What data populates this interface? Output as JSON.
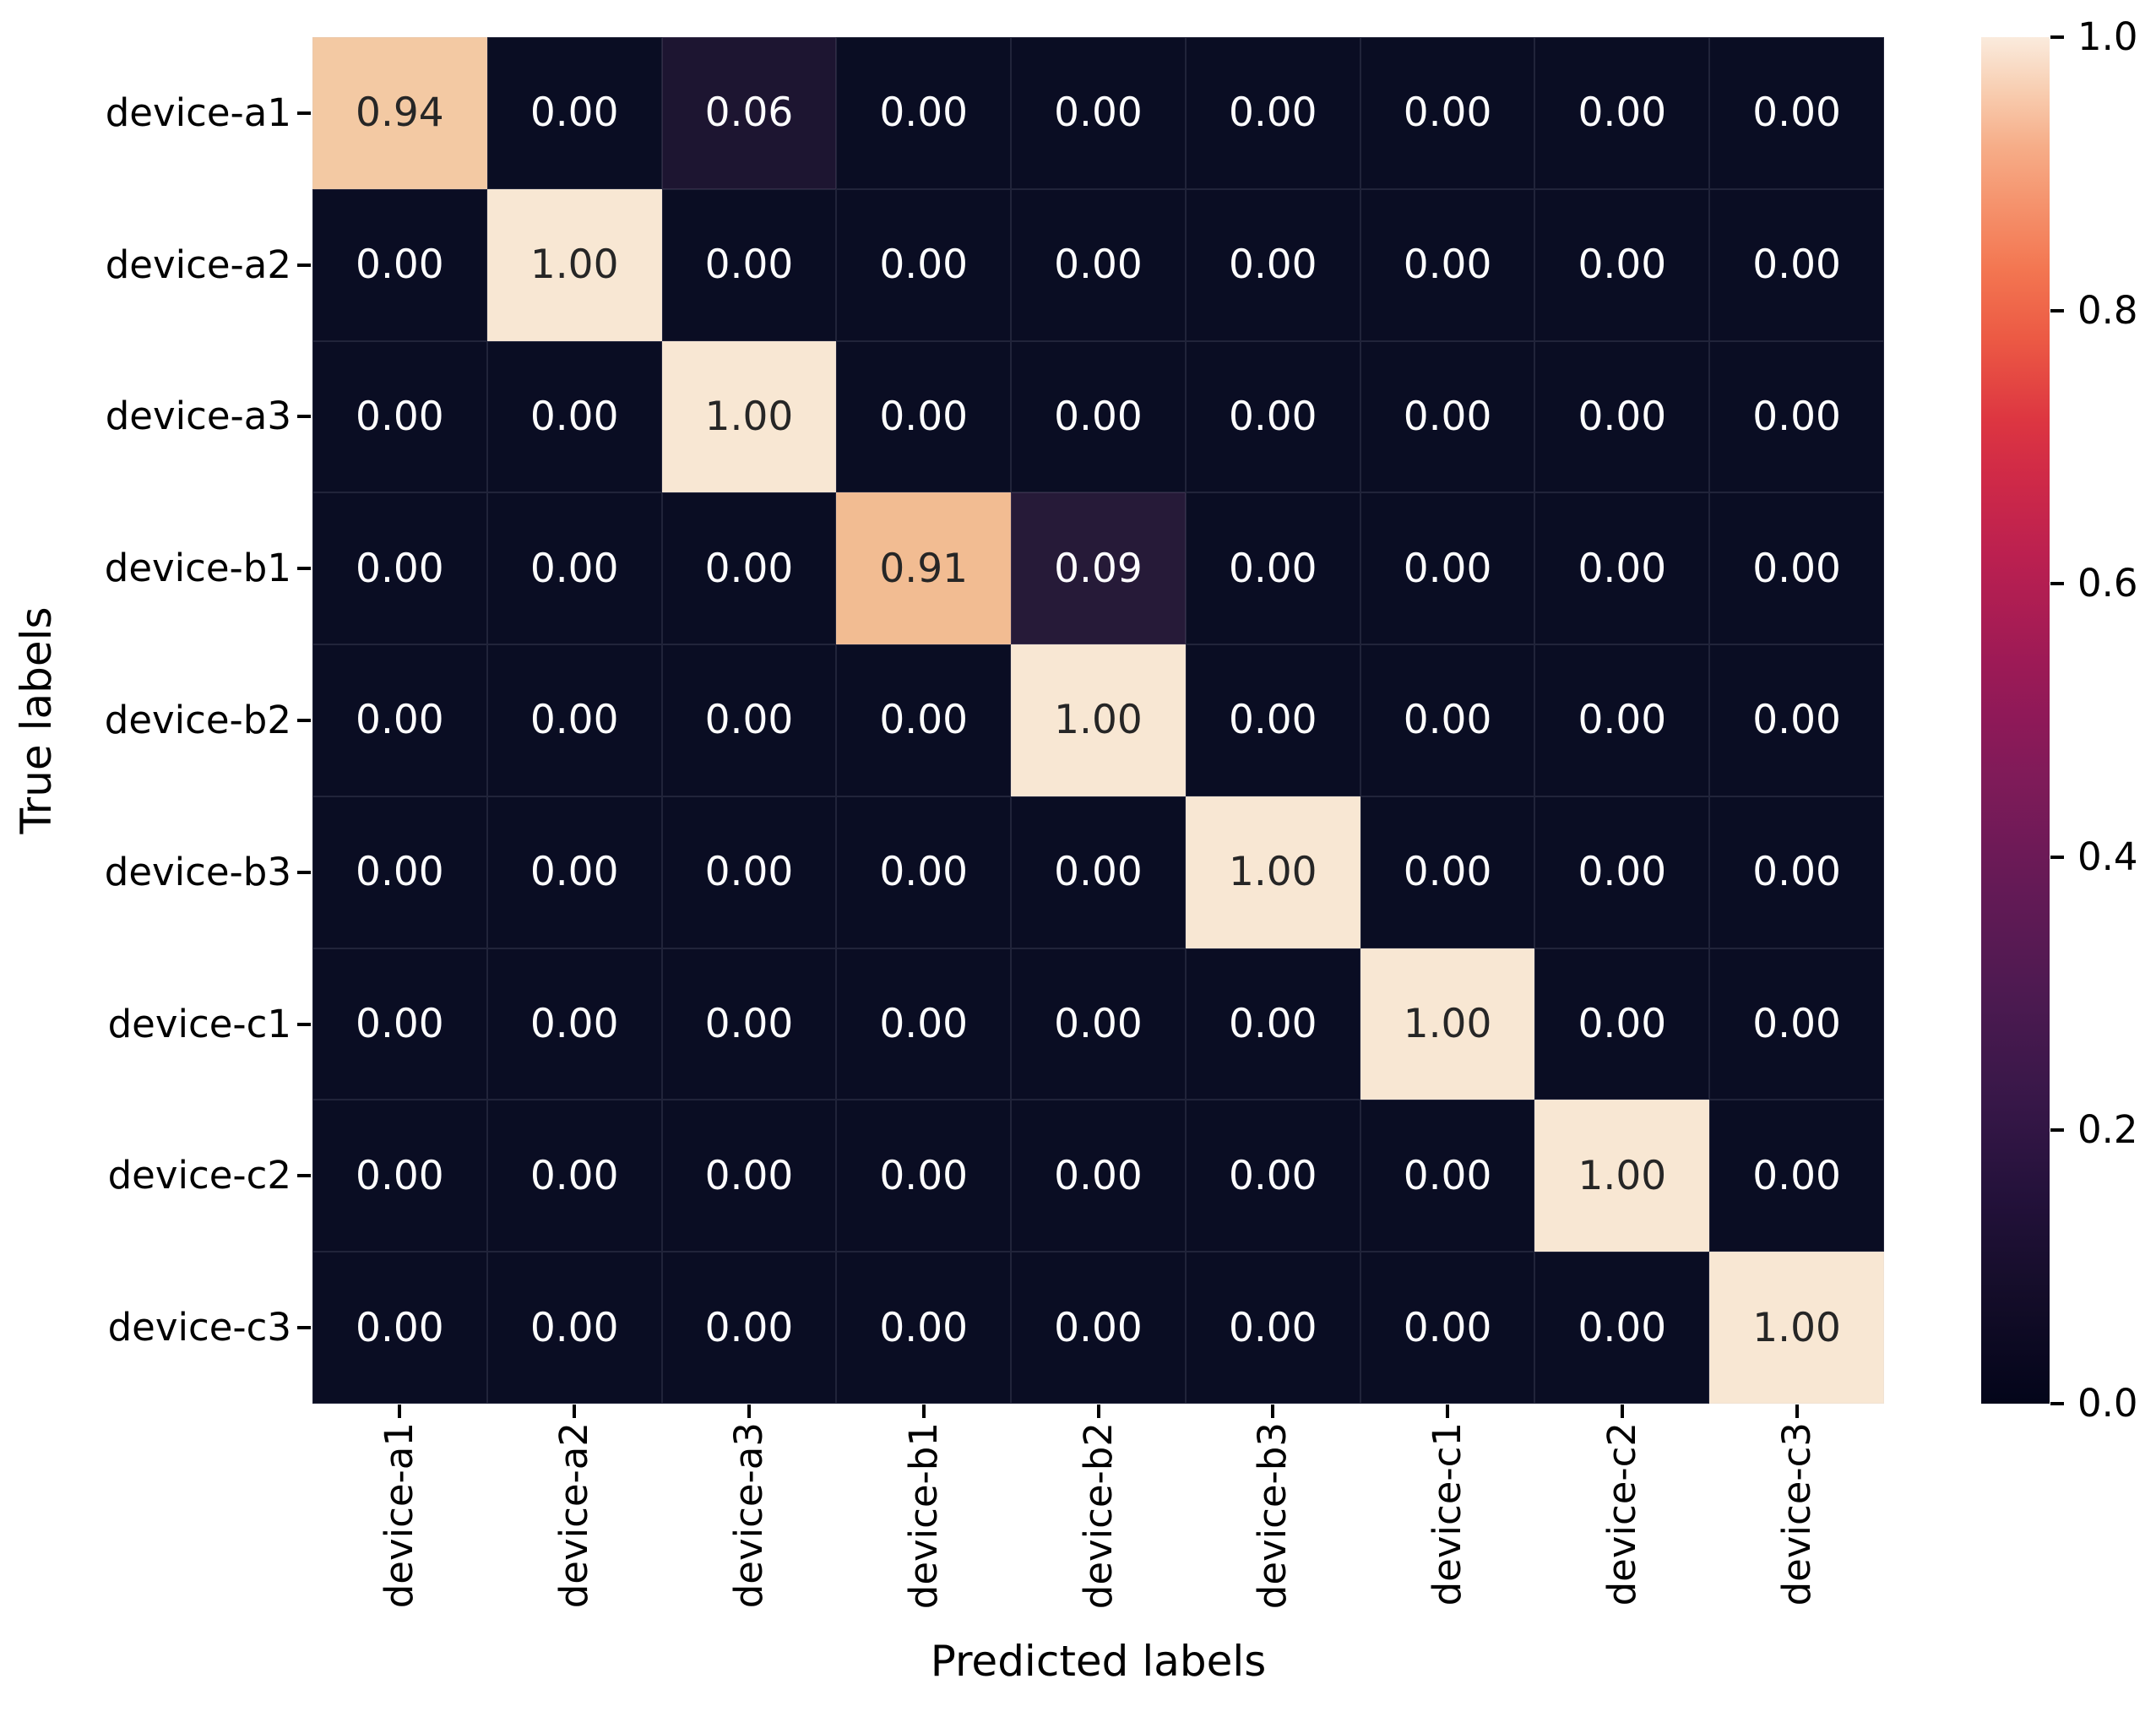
{
  "figure": {
    "xlabel": "Predicted labels",
    "ylabel": "True labels",
    "background": "#ffffff"
  },
  "chart_data": {
    "type": "heatmap",
    "title": "",
    "xlabel": "Predicted labels",
    "ylabel": "True labels",
    "x_labels": [
      "device-a1",
      "device-a2",
      "device-a3",
      "device-b1",
      "device-b2",
      "device-b3",
      "device-c1",
      "device-c2",
      "device-c3"
    ],
    "y_labels": [
      "device-a1",
      "device-a2",
      "device-a3",
      "device-b1",
      "device-b2",
      "device-b3",
      "device-c1",
      "device-c2",
      "device-c3"
    ],
    "values": [
      [
        0.94,
        0.0,
        0.06,
        0.0,
        0.0,
        0.0,
        0.0,
        0.0,
        0.0
      ],
      [
        0.0,
        1.0,
        0.0,
        0.0,
        0.0,
        0.0,
        0.0,
        0.0,
        0.0
      ],
      [
        0.0,
        0.0,
        1.0,
        0.0,
        0.0,
        0.0,
        0.0,
        0.0,
        0.0
      ],
      [
        0.0,
        0.0,
        0.0,
        0.91,
        0.09,
        0.0,
        0.0,
        0.0,
        0.0
      ],
      [
        0.0,
        0.0,
        0.0,
        0.0,
        1.0,
        0.0,
        0.0,
        0.0,
        0.0
      ],
      [
        0.0,
        0.0,
        0.0,
        0.0,
        0.0,
        1.0,
        0.0,
        0.0,
        0.0
      ],
      [
        0.0,
        0.0,
        0.0,
        0.0,
        0.0,
        0.0,
        1.0,
        0.0,
        0.0
      ],
      [
        0.0,
        0.0,
        0.0,
        0.0,
        0.0,
        0.0,
        0.0,
        1.0,
        0.0
      ],
      [
        0.0,
        0.0,
        0.0,
        0.0,
        0.0,
        0.0,
        0.0,
        0.0,
        1.0
      ]
    ],
    "annotation_format": ".2f",
    "colormap": "rocket",
    "vmin": 0.0,
    "vmax": 1.0,
    "grid": false,
    "legend_position": "right-colorbar",
    "colorbar_ticks": [
      {
        "label": "1.0",
        "value": 1.0
      },
      {
        "label": "0.8",
        "value": 0.8
      },
      {
        "label": "0.6",
        "value": 0.6
      },
      {
        "label": "0.4",
        "value": 0.4
      },
      {
        "label": "0.2",
        "value": 0.2
      },
      {
        "label": "0.0",
        "value": 0.0
      }
    ]
  },
  "colors": {
    "cell_by_value": {
      "0.00": "#0a0d23",
      "0.06": "#1d1531",
      "0.09": "#261a38",
      "0.91": "#f2bc92",
      "0.94": "#f3c9a3",
      "1.00": "#f8e7d3"
    },
    "annotation_light_text": "#ffffff",
    "annotation_dark_text": "#262626",
    "dark_text_threshold": 0.5,
    "axis_text": "#000000",
    "colorbar_gradient_bottom_to_top": [
      [
        "0%",
        "#03051a"
      ],
      [
        "8%",
        "#140d29"
      ],
      [
        "15%",
        "#23113a"
      ],
      [
        "22%",
        "#371748"
      ],
      [
        "30%",
        "#4d1a51"
      ],
      [
        "38%",
        "#651a56"
      ],
      [
        "46%",
        "#801b59"
      ],
      [
        "50%",
        "#8e1958"
      ],
      [
        "54%",
        "#9c1a56"
      ],
      [
        "62%",
        "#bb2050"
      ],
      [
        "68%",
        "#d02a47"
      ],
      [
        "72%",
        "#dd3641"
      ],
      [
        "78%",
        "#ec5a44"
      ],
      [
        "83%",
        "#f37651"
      ],
      [
        "88%",
        "#f5946e"
      ],
      [
        "92%",
        "#f6ad88"
      ],
      [
        "96%",
        "#f8cdb0"
      ],
      [
        "100%",
        "#faebdd"
      ]
    ]
  }
}
